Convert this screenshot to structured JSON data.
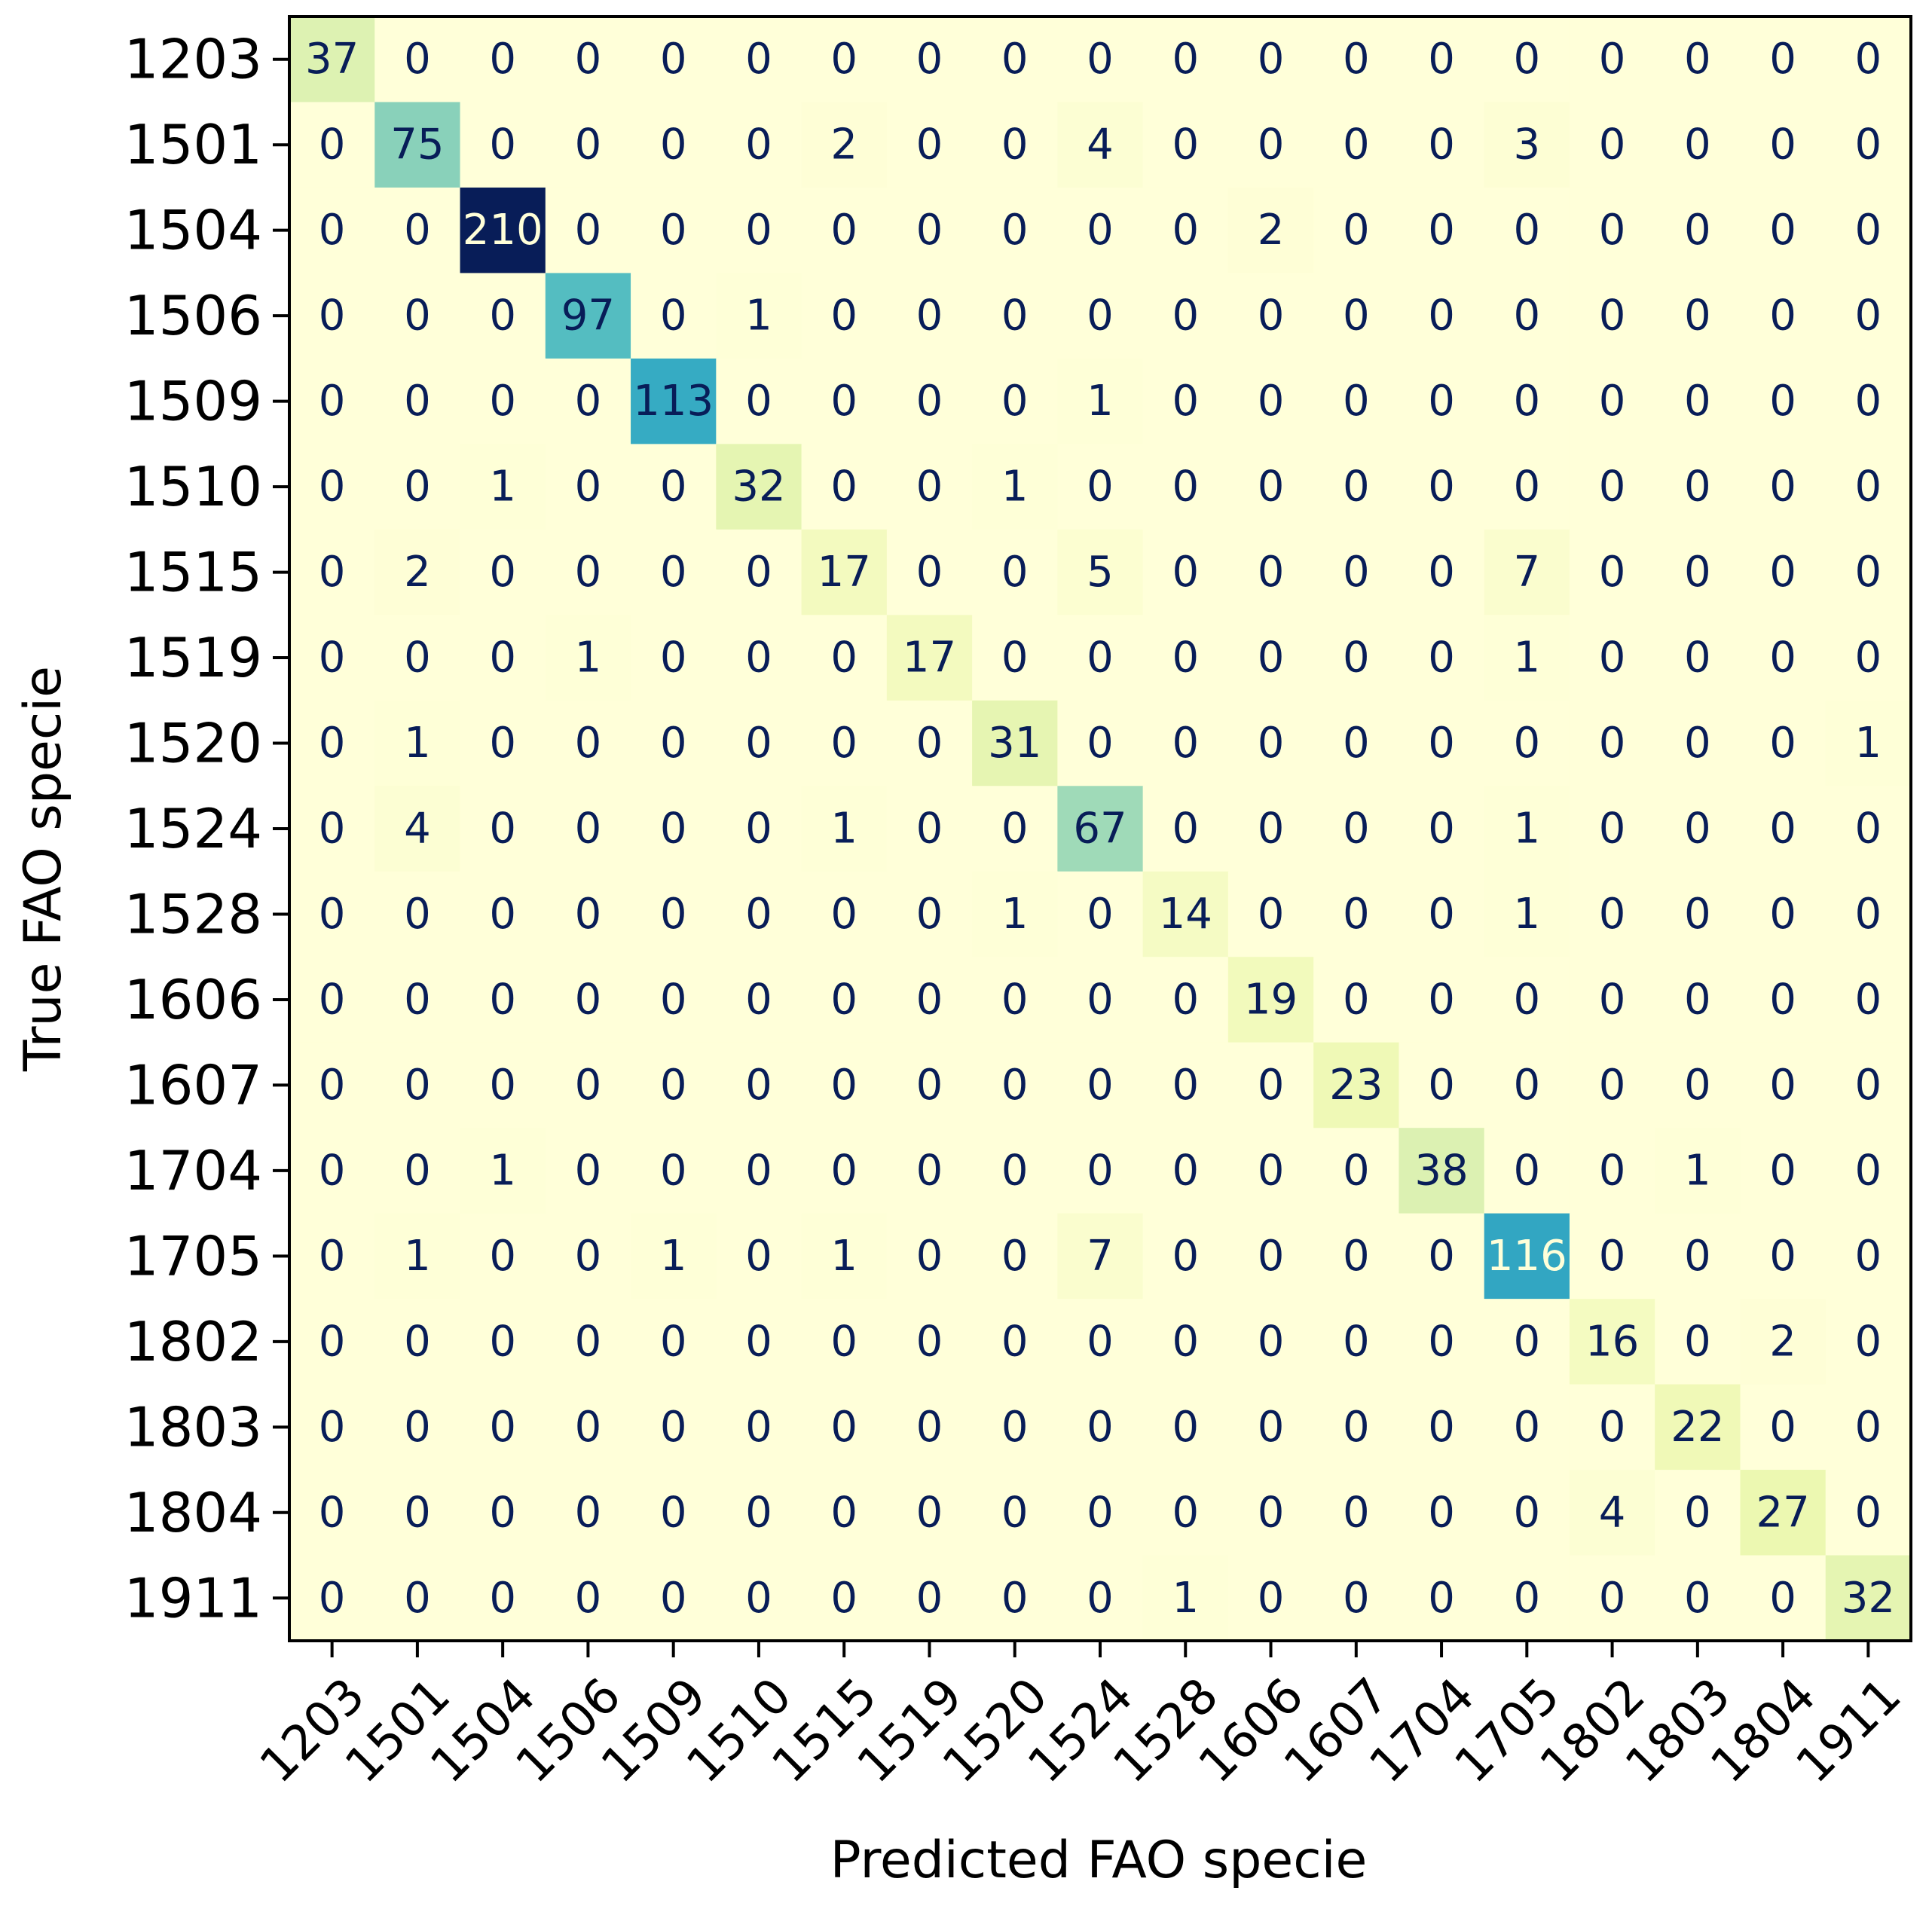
{
  "chart_data": {
    "type": "heatmap",
    "title": "",
    "xlabel": "Predicted FAO specie",
    "ylabel": "True FAO specie",
    "x_categories": [
      "1203",
      "1501",
      "1504",
      "1506",
      "1509",
      "1510",
      "1515",
      "1519",
      "1520",
      "1524",
      "1528",
      "1606",
      "1607",
      "1704",
      "1705",
      "1802",
      "1803",
      "1804",
      "1911"
    ],
    "y_categories": [
      "1203",
      "1501",
      "1504",
      "1506",
      "1509",
      "1510",
      "1515",
      "1519",
      "1520",
      "1524",
      "1528",
      "1606",
      "1607",
      "1704",
      "1705",
      "1802",
      "1803",
      "1804",
      "1911"
    ],
    "values": [
      [
        37,
        0,
        0,
        0,
        0,
        0,
        0,
        0,
        0,
        0,
        0,
        0,
        0,
        0,
        0,
        0,
        0,
        0,
        0
      ],
      [
        0,
        75,
        0,
        0,
        0,
        0,
        2,
        0,
        0,
        4,
        0,
        0,
        0,
        0,
        3,
        0,
        0,
        0,
        0
      ],
      [
        0,
        0,
        210,
        0,
        0,
        0,
        0,
        0,
        0,
        0,
        0,
        2,
        0,
        0,
        0,
        0,
        0,
        0,
        0
      ],
      [
        0,
        0,
        0,
        97,
        0,
        1,
        0,
        0,
        0,
        0,
        0,
        0,
        0,
        0,
        0,
        0,
        0,
        0,
        0
      ],
      [
        0,
        0,
        0,
        0,
        113,
        0,
        0,
        0,
        0,
        1,
        0,
        0,
        0,
        0,
        0,
        0,
        0,
        0,
        0
      ],
      [
        0,
        0,
        1,
        0,
        0,
        32,
        0,
        0,
        1,
        0,
        0,
        0,
        0,
        0,
        0,
        0,
        0,
        0,
        0
      ],
      [
        0,
        2,
        0,
        0,
        0,
        0,
        17,
        0,
        0,
        5,
        0,
        0,
        0,
        0,
        7,
        0,
        0,
        0,
        0
      ],
      [
        0,
        0,
        0,
        1,
        0,
        0,
        0,
        17,
        0,
        0,
        0,
        0,
        0,
        0,
        1,
        0,
        0,
        0,
        0
      ],
      [
        0,
        1,
        0,
        0,
        0,
        0,
        0,
        0,
        31,
        0,
        0,
        0,
        0,
        0,
        0,
        0,
        0,
        0,
        1
      ],
      [
        0,
        4,
        0,
        0,
        0,
        0,
        1,
        0,
        0,
        67,
        0,
        0,
        0,
        0,
        1,
        0,
        0,
        0,
        0
      ],
      [
        0,
        0,
        0,
        0,
        0,
        0,
        0,
        0,
        1,
        0,
        14,
        0,
        0,
        0,
        1,
        0,
        0,
        0,
        0
      ],
      [
        0,
        0,
        0,
        0,
        0,
        0,
        0,
        0,
        0,
        0,
        0,
        19,
        0,
        0,
        0,
        0,
        0,
        0,
        0
      ],
      [
        0,
        0,
        0,
        0,
        0,
        0,
        0,
        0,
        0,
        0,
        0,
        0,
        23,
        0,
        0,
        0,
        0,
        0,
        0
      ],
      [
        0,
        0,
        1,
        0,
        0,
        0,
        0,
        0,
        0,
        0,
        0,
        0,
        0,
        38,
        0,
        0,
        1,
        0,
        0
      ],
      [
        0,
        1,
        0,
        0,
        1,
        0,
        1,
        0,
        0,
        7,
        0,
        0,
        0,
        0,
        116,
        0,
        0,
        0,
        0
      ],
      [
        0,
        0,
        0,
        0,
        0,
        0,
        0,
        0,
        0,
        0,
        0,
        0,
        0,
        0,
        0,
        16,
        0,
        2,
        0
      ],
      [
        0,
        0,
        0,
        0,
        0,
        0,
        0,
        0,
        0,
        0,
        0,
        0,
        0,
        0,
        0,
        0,
        22,
        0,
        0
      ],
      [
        0,
        0,
        0,
        0,
        0,
        0,
        0,
        0,
        0,
        0,
        0,
        0,
        0,
        0,
        0,
        4,
        0,
        27,
        0
      ],
      [
        0,
        0,
        0,
        0,
        0,
        0,
        0,
        0,
        0,
        0,
        1,
        0,
        0,
        0,
        0,
        0,
        0,
        0,
        32
      ]
    ],
    "colormap": "YlGnBu",
    "colorbar": false,
    "grid": false
  }
}
